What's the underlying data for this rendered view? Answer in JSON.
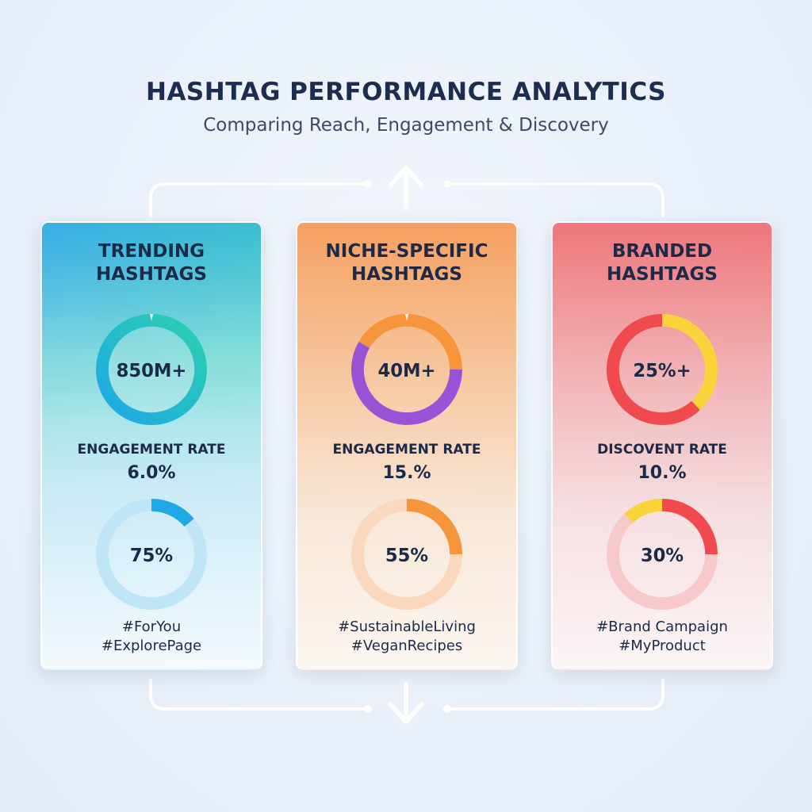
{
  "header": {
    "title": "HASHTAG PERFORMANCE ANALYTICS",
    "subtitle": "Comparing Reach, Engagement & Discovery"
  },
  "colors": {
    "trending_ring": [
      "#1fa8e6",
      "#2ad0b0"
    ],
    "trending_track": "#bfe6f6",
    "niche_ring": [
      "#f6953a",
      "#9a52d6"
    ],
    "niche_track": "#fbd8bd",
    "branded_ring": [
      "#f04a4e",
      "#f8d43a"
    ],
    "branded_track": "#f8c9cb"
  },
  "cards": [
    {
      "title_line1": "TRENDING",
      "title_line2": "HASHTAGS",
      "top_value": "850M+",
      "metric_label": "ENGAGEMENT RATE",
      "metric_value": "6.0%",
      "bottom_value": "75%",
      "tag1": "#ForYou",
      "tag2": "#ExplorePage"
    },
    {
      "title_line1": "NICHE-SPECIFIC",
      "title_line2": "HASHTAGS",
      "top_value": "40M+",
      "metric_label": "ENGAGEMENT RATE",
      "metric_value": "15.%",
      "bottom_value": "55%",
      "tag1": "#SustainableLiving",
      "tag2": "#VeganRecipes"
    },
    {
      "title_line1": "BRANDED",
      "title_line2": "HASHTAGS",
      "top_value": "25%+",
      "metric_label": "DISCOVENT RATE",
      "metric_value": "10.%",
      "bottom_value": "30%",
      "tag1": "#Brand Campaign",
      "tag2": "#MyProduct"
    }
  ],
  "chart_data": [
    {
      "type": "donut",
      "title": "TRENDING HASHTAGS",
      "rings": [
        {
          "label": "850M+",
          "fill_fraction": 1.0,
          "colors": [
            "#1fa8e6",
            "#2ad0b0"
          ]
        },
        {
          "label": "75%",
          "fill_fraction": 0.13,
          "colors": [
            "#1fa8e6"
          ]
        }
      ],
      "metric": {
        "label": "ENGAGEMENT RATE",
        "value": "6.0%"
      }
    },
    {
      "type": "donut",
      "title": "NICHE-SPECIFIC HASHTAGS",
      "rings": [
        {
          "label": "40M+",
          "segments": [
            {
              "color": "#f6953a",
              "fraction": 0.45
            },
            {
              "color": "#9a52d6",
              "fraction": 0.55
            }
          ]
        },
        {
          "label": "55%",
          "fill_fraction": 0.25,
          "colors": [
            "#f6953a"
          ]
        }
      ],
      "metric": {
        "label": "ENGAGEMENT RATE",
        "value": "15.%"
      }
    },
    {
      "type": "donut",
      "title": "BRANDED HASHTAGS",
      "rings": [
        {
          "label": "25%+",
          "segments": [
            {
              "color": "#f8d43a",
              "fraction": 0.38
            },
            {
              "color": "#f04a4e",
              "fraction": 0.62
            }
          ]
        },
        {
          "label": "30%",
          "segments": [
            {
              "color": "#f04a4e",
              "fraction": 0.25
            },
            {
              "color": "#f8d43a",
              "fraction": 0.12
            }
          ]
        }
      ],
      "metric": {
        "label": "DISCOVENT RATE",
        "value": "10.%"
      }
    }
  ]
}
